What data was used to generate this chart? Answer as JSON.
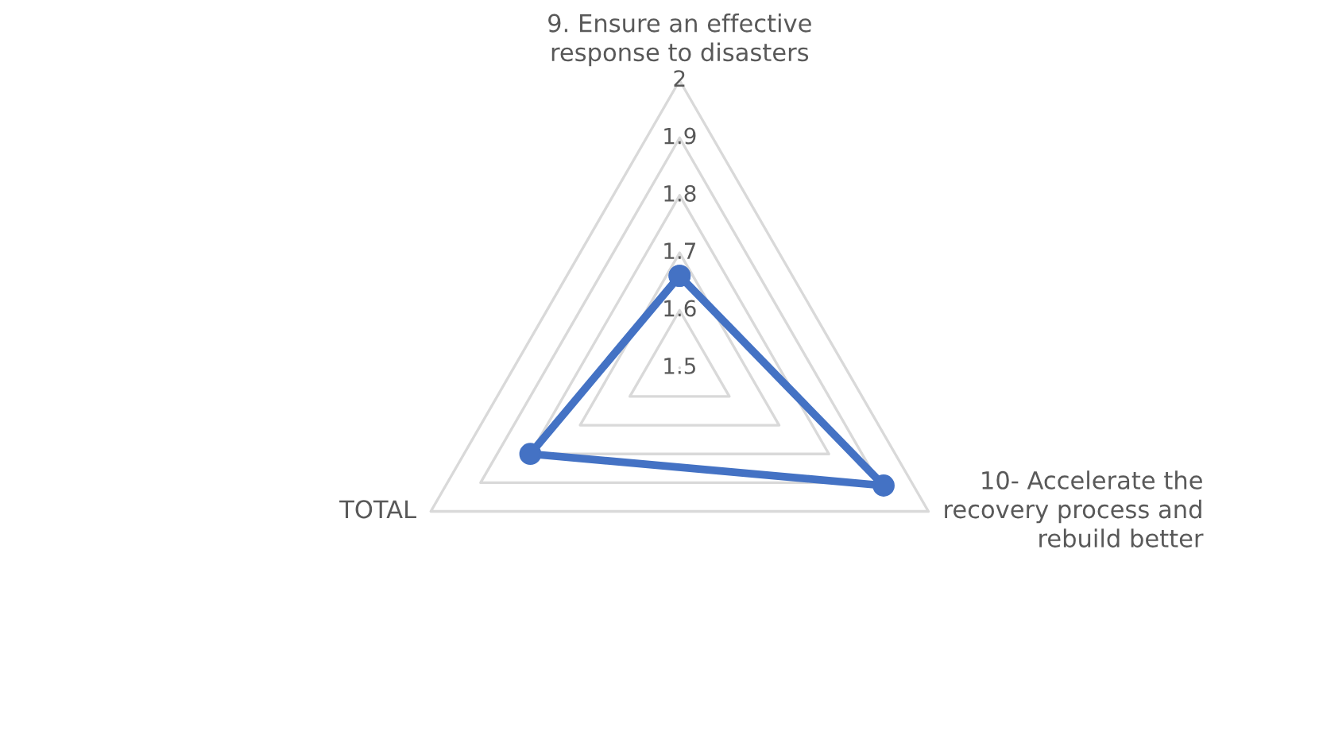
{
  "chart_data": {
    "type": "radar",
    "categories": [
      "9. Ensure an effective\nresponse to disasters",
      "10- Accelerate the\nrecovery process and\nrebuild better",
      "TOTAL"
    ],
    "series": [
      {
        "color": "#4472c4",
        "values": [
          1.66,
          1.91,
          1.8
        ]
      }
    ],
    "ylim": [
      1.5,
      2
    ],
    "yticks": [
      1.5,
      1.6,
      1.7,
      1.8,
      1.9,
      2
    ],
    "grid": true,
    "marker": "circle",
    "line_style": "solid"
  }
}
